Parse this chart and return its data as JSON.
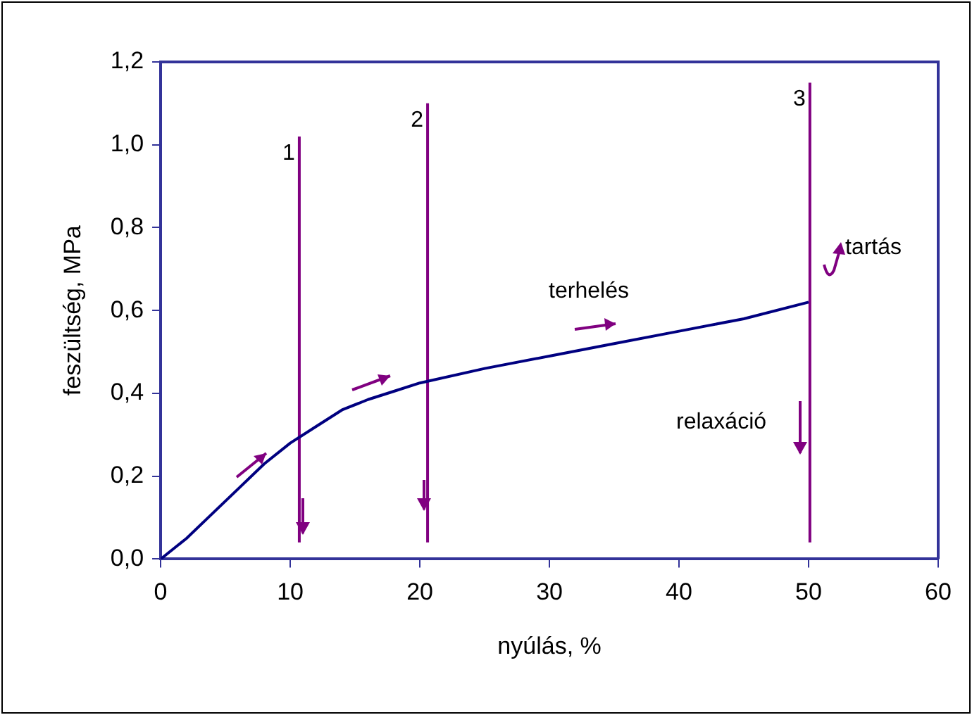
{
  "chart_data": {
    "type": "line",
    "xlabel": "nyúlás, %",
    "ylabel": "feszültség, MPa",
    "xlim": [
      0,
      60
    ],
    "xticks": [
      0,
      10,
      20,
      30,
      40,
      50,
      60
    ],
    "ylim": [
      0,
      1.2
    ],
    "yticks": [
      {
        "value": 0,
        "label": "0,0"
      },
      {
        "value": 0.2,
        "label": "0,2"
      },
      {
        "value": 0.4,
        "label": "0,4"
      },
      {
        "value": 0.6,
        "label": "0,6"
      },
      {
        "value": 0.8,
        "label": "0,8"
      },
      {
        "value": 1,
        "label": "1,0"
      },
      {
        "value": 1.2,
        "label": "1,2"
      }
    ],
    "grid": false,
    "legend": false,
    "marker": "none",
    "line_style": "solid",
    "series": [
      {
        "color": "#000080",
        "x": [
          0,
          2,
          4,
          6,
          8,
          10,
          12,
          14,
          16,
          18,
          20,
          25,
          30,
          35,
          40,
          45,
          50
        ],
        "values": [
          0,
          0.05,
          0.11,
          0.17,
          0.23,
          0.28,
          0.32,
          0.36,
          0.385,
          0.405,
          0.425,
          0.46,
          0.49,
          0.52,
          0.55,
          0.58,
          0.62
        ]
      },
      {
        "name": "1",
        "color": "#800080",
        "x": [
          10.7,
          10.7
        ],
        "values": [
          0.04,
          1.02
        ]
      },
      {
        "name": "2",
        "color": "#800080",
        "x": [
          20.6,
          20.6
        ],
        "values": [
          0.04,
          1.1
        ]
      },
      {
        "name": "3",
        "color": "#800080",
        "x": [
          50.1,
          50.1
        ],
        "values": [
          0.04,
          1.15
        ]
      }
    ],
    "annotations": [
      "terhelés",
      "relaxáció",
      "tartás"
    ]
  }
}
